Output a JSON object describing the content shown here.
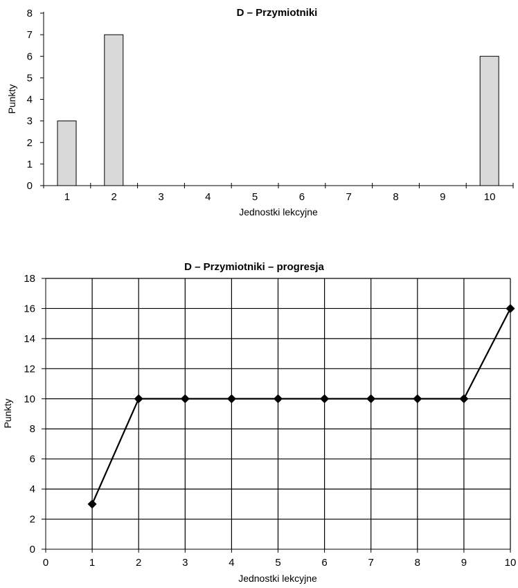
{
  "chart_data": [
    {
      "type": "bar",
      "title": "D – Przymiotniki",
      "xlabel": "Jednostki lekcyjne",
      "ylabel": "Punkty",
      "categories": [
        "1",
        "2",
        "3",
        "4",
        "5",
        "6",
        "7",
        "8",
        "9",
        "10"
      ],
      "values": [
        3,
        7,
        0,
        0,
        0,
        0,
        0,
        0,
        0,
        6
      ],
      "ylim": [
        0,
        8
      ],
      "yticks": [
        0,
        1,
        2,
        3,
        4,
        5,
        6,
        7,
        8
      ],
      "grid": false,
      "colors": {
        "bar_fill": "#d9d9d9",
        "bar_stroke": "#000000"
      }
    },
    {
      "type": "line",
      "title": "D – Przymiotniki – progresja",
      "xlabel": "Jednostki lekcyjne",
      "ylabel": "Punkty",
      "x": [
        1,
        2,
        3,
        4,
        5,
        6,
        7,
        8,
        9,
        10
      ],
      "y": [
        3,
        10,
        10,
        10,
        10,
        10,
        10,
        10,
        10,
        16
      ],
      "xlim": [
        0,
        10
      ],
      "ylim": [
        0,
        18
      ],
      "xticks": [
        0,
        1,
        2,
        3,
        4,
        5,
        6,
        7,
        8,
        9,
        10
      ],
      "yticks": [
        0,
        2,
        4,
        6,
        8,
        10,
        12,
        14,
        16,
        18
      ],
      "grid": true,
      "marker": "diamond",
      "colors": {
        "line": "#000000",
        "marker": "#000000"
      }
    }
  ]
}
